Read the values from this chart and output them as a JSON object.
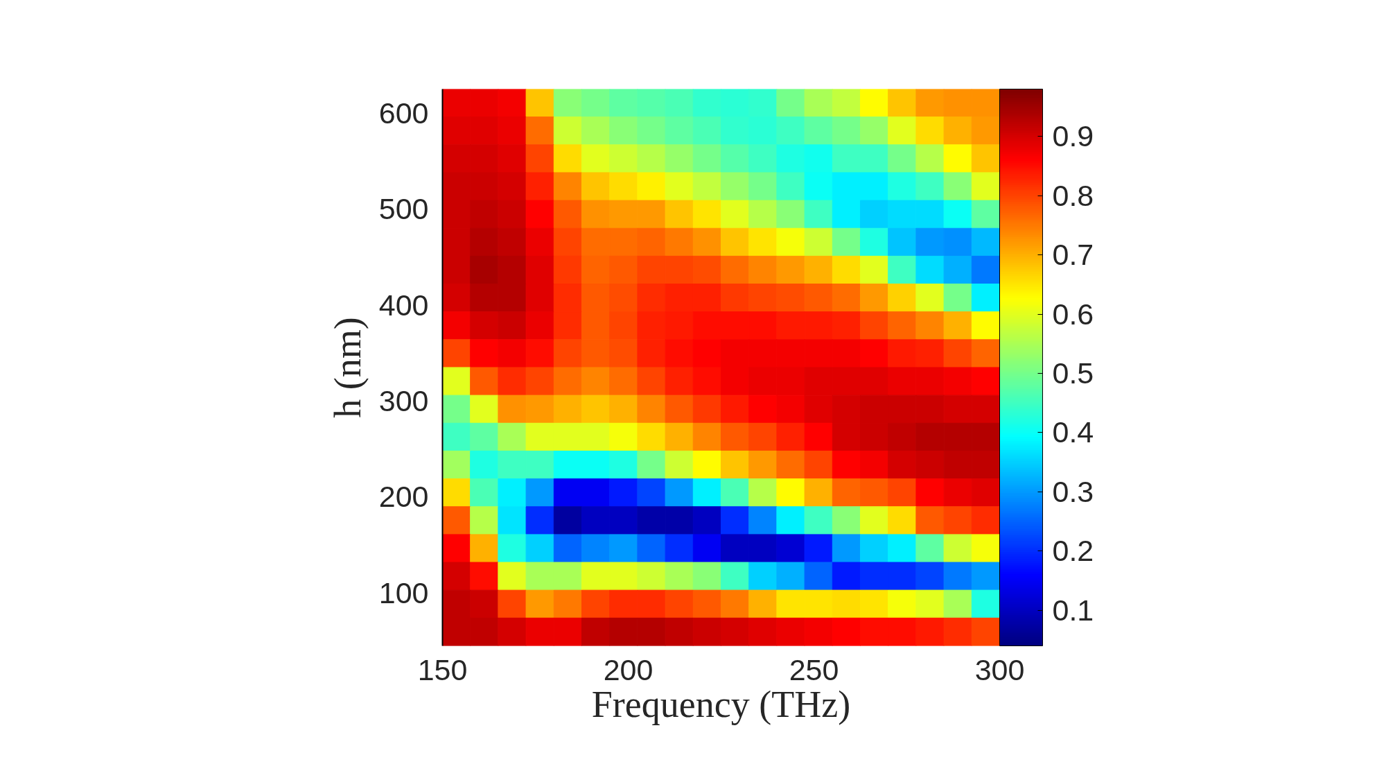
{
  "chart_data": {
    "type": "heatmap",
    "xlabel": "Frequency (THz)",
    "ylabel": "h (nm)",
    "xlim": [
      150,
      300
    ],
    "ylim": [
      45,
      625
    ],
    "xticks": [
      150,
      200,
      250,
      300
    ],
    "yticks": [
      100,
      200,
      300,
      400,
      500,
      600
    ],
    "clim": [
      0.04,
      0.98
    ],
    "cticks": [
      0.1,
      0.2,
      0.3,
      0.4,
      0.5,
      0.6,
      0.7,
      0.8,
      0.9
    ],
    "x": [
      153.75,
      161.25,
      168.75,
      176.25,
      183.75,
      191.25,
      198.75,
      206.25,
      213.75,
      221.25,
      228.75,
      236.25,
      243.75,
      251.25,
      258.75,
      266.25,
      273.75,
      281.25,
      288.75,
      296.25
    ],
    "y": [
      610.5,
      581.5,
      552.5,
      523.5,
      494.5,
      465.5,
      436.5,
      407.5,
      378.5,
      349.5,
      320.5,
      291.5,
      262.5,
      233.5,
      204.5,
      175.5,
      146.5,
      117.5,
      88.5,
      59.5
    ],
    "cells": [
      [
        0.88,
        0.88,
        0.87,
        0.68,
        0.52,
        0.5,
        0.48,
        0.47,
        0.46,
        0.44,
        0.43,
        0.44,
        0.5,
        0.55,
        0.57,
        0.63,
        0.68,
        0.72,
        0.73,
        0.73
      ],
      [
        0.89,
        0.89,
        0.88,
        0.76,
        0.58,
        0.55,
        0.52,
        0.5,
        0.48,
        0.46,
        0.44,
        0.43,
        0.45,
        0.48,
        0.5,
        0.53,
        0.6,
        0.66,
        0.7,
        0.72
      ],
      [
        0.9,
        0.9,
        0.89,
        0.8,
        0.66,
        0.6,
        0.58,
        0.56,
        0.53,
        0.5,
        0.47,
        0.45,
        0.42,
        0.41,
        0.45,
        0.45,
        0.5,
        0.56,
        0.63,
        0.68
      ],
      [
        0.91,
        0.91,
        0.9,
        0.83,
        0.74,
        0.68,
        0.66,
        0.64,
        0.6,
        0.57,
        0.53,
        0.5,
        0.45,
        0.4,
        0.38,
        0.38,
        0.42,
        0.45,
        0.52,
        0.6
      ],
      [
        0.91,
        0.92,
        0.91,
        0.86,
        0.78,
        0.73,
        0.72,
        0.72,
        0.68,
        0.65,
        0.6,
        0.56,
        0.52,
        0.45,
        0.38,
        0.35,
        0.36,
        0.36,
        0.4,
        0.48
      ],
      [
        0.91,
        0.93,
        0.92,
        0.88,
        0.8,
        0.76,
        0.76,
        0.77,
        0.75,
        0.73,
        0.68,
        0.65,
        0.62,
        0.58,
        0.5,
        0.42,
        0.34,
        0.3,
        0.29,
        0.33
      ],
      [
        0.91,
        0.94,
        0.93,
        0.89,
        0.81,
        0.77,
        0.78,
        0.8,
        0.8,
        0.79,
        0.76,
        0.74,
        0.72,
        0.7,
        0.66,
        0.6,
        0.45,
        0.36,
        0.32,
        0.27
      ],
      [
        0.9,
        0.93,
        0.93,
        0.89,
        0.82,
        0.78,
        0.79,
        0.82,
        0.83,
        0.83,
        0.81,
        0.8,
        0.79,
        0.78,
        0.76,
        0.72,
        0.67,
        0.6,
        0.5,
        0.38
      ],
      [
        0.87,
        0.9,
        0.91,
        0.88,
        0.82,
        0.78,
        0.8,
        0.83,
        0.84,
        0.85,
        0.85,
        0.85,
        0.84,
        0.84,
        0.83,
        0.8,
        0.77,
        0.74,
        0.7,
        0.63
      ],
      [
        0.8,
        0.86,
        0.87,
        0.85,
        0.8,
        0.78,
        0.79,
        0.83,
        0.85,
        0.86,
        0.87,
        0.87,
        0.87,
        0.87,
        0.87,
        0.86,
        0.84,
        0.83,
        0.8,
        0.77
      ],
      [
        0.6,
        0.78,
        0.82,
        0.8,
        0.76,
        0.74,
        0.76,
        0.8,
        0.83,
        0.85,
        0.87,
        0.88,
        0.88,
        0.89,
        0.89,
        0.89,
        0.88,
        0.88,
        0.87,
        0.86
      ],
      [
        0.5,
        0.6,
        0.73,
        0.72,
        0.7,
        0.68,
        0.7,
        0.74,
        0.78,
        0.81,
        0.84,
        0.86,
        0.87,
        0.89,
        0.9,
        0.91,
        0.91,
        0.91,
        0.9,
        0.9
      ],
      [
        0.45,
        0.48,
        0.55,
        0.6,
        0.6,
        0.6,
        0.62,
        0.66,
        0.7,
        0.74,
        0.78,
        0.8,
        0.83,
        0.86,
        0.9,
        0.91,
        0.92,
        0.93,
        0.93,
        0.93
      ],
      [
        0.54,
        0.42,
        0.45,
        0.45,
        0.4,
        0.4,
        0.42,
        0.5,
        0.58,
        0.63,
        0.68,
        0.72,
        0.76,
        0.8,
        0.86,
        0.87,
        0.9,
        0.91,
        0.92,
        0.92
      ],
      [
        0.66,
        0.46,
        0.38,
        0.3,
        0.15,
        0.15,
        0.18,
        0.22,
        0.3,
        0.38,
        0.46,
        0.56,
        0.63,
        0.7,
        0.77,
        0.78,
        0.8,
        0.86,
        0.88,
        0.89
      ],
      [
        0.78,
        0.56,
        0.37,
        0.2,
        0.07,
        0.1,
        0.1,
        0.08,
        0.08,
        0.1,
        0.2,
        0.28,
        0.38,
        0.45,
        0.52,
        0.6,
        0.66,
        0.78,
        0.8,
        0.82
      ],
      [
        0.86,
        0.7,
        0.42,
        0.35,
        0.25,
        0.28,
        0.3,
        0.25,
        0.2,
        0.15,
        0.1,
        0.1,
        0.12,
        0.18,
        0.3,
        0.35,
        0.38,
        0.48,
        0.58,
        0.62
      ],
      [
        0.9,
        0.85,
        0.6,
        0.55,
        0.55,
        0.6,
        0.6,
        0.58,
        0.55,
        0.52,
        0.45,
        0.35,
        0.32,
        0.25,
        0.18,
        0.2,
        0.2,
        0.22,
        0.27,
        0.3
      ],
      [
        0.92,
        0.91,
        0.8,
        0.72,
        0.75,
        0.8,
        0.82,
        0.82,
        0.8,
        0.78,
        0.75,
        0.7,
        0.65,
        0.65,
        0.66,
        0.65,
        0.62,
        0.6,
        0.55,
        0.42
      ],
      [
        0.92,
        0.92,
        0.9,
        0.88,
        0.88,
        0.92,
        0.93,
        0.93,
        0.92,
        0.91,
        0.9,
        0.89,
        0.88,
        0.87,
        0.86,
        0.85,
        0.85,
        0.84,
        0.82,
        0.8
      ]
    ]
  }
}
